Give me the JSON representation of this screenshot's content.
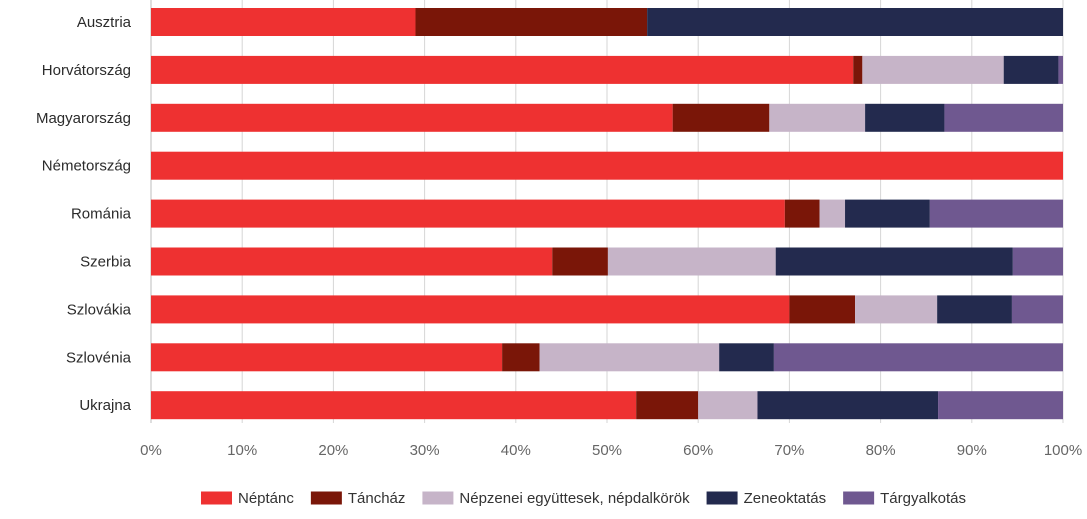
{
  "chart_data": {
    "type": "bar",
    "orientation": "horizontal",
    "stacked": true,
    "normalized_percent": true,
    "categories": [
      "Ausztria",
      "Horvátország",
      "Magyarország",
      "Németország",
      "Románia",
      "Szerbia",
      "Szlovákia",
      "Szlovénia",
      "Ukrajna"
    ],
    "series": [
      {
        "name": "Néptánc",
        "color": "#ee3131",
        "values": [
          29,
          77,
          57.2,
          100,
          69.5,
          44,
          70,
          38.5,
          53.2
        ]
      },
      {
        "name": "Táncház",
        "color": "#7a1608",
        "values": [
          25.4,
          1,
          10.6,
          0,
          3.8,
          6.1,
          7.2,
          4.1,
          6.8
        ]
      },
      {
        "name": "Népzenei együttesek, népdalkörök",
        "color": "#c6b4c8",
        "values": [
          0,
          15.5,
          10.5,
          0,
          2.8,
          18.4,
          9,
          19.7,
          6.5
        ]
      },
      {
        "name": "Zeneoktatás",
        "color": "#232a4e",
        "values": [
          45.6,
          6,
          8.7,
          0,
          9.3,
          26,
          8.2,
          6,
          19.8
        ]
      },
      {
        "name": "Tárgyalkotás",
        "color": "#6f5890",
        "values": [
          0,
          0.5,
          13,
          0,
          14.6,
          5.5,
          5.6,
          31.7,
          13.7
        ]
      }
    ],
    "xlim": [
      0,
      100
    ],
    "xticks": [
      "0%",
      "10%",
      "20%",
      "30%",
      "40%",
      "50%",
      "60%",
      "70%",
      "80%",
      "90%",
      "100%"
    ],
    "grid": true,
    "legend_position": "bottom",
    "title": "",
    "xlabel": "",
    "ylabel": ""
  }
}
